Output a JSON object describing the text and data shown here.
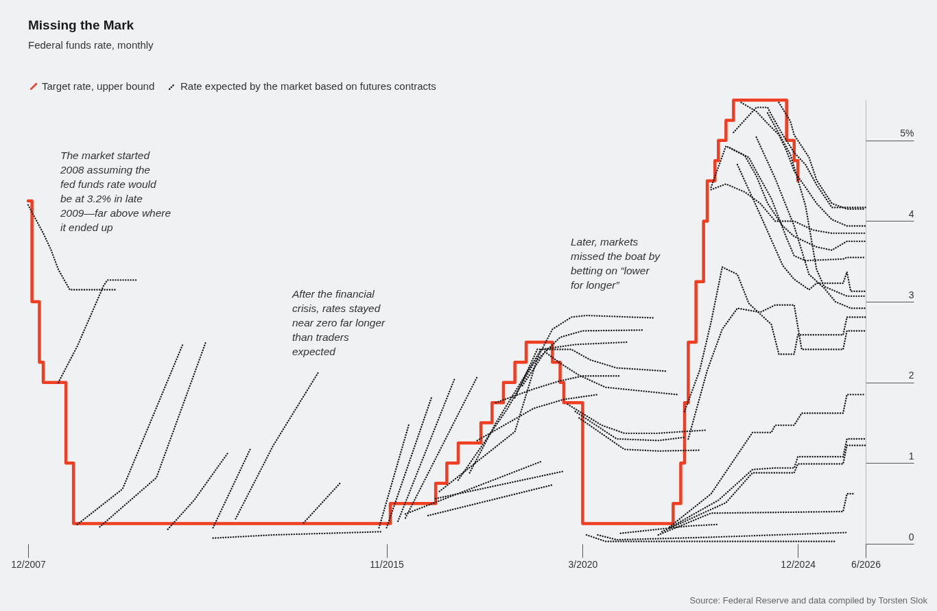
{
  "chart_data": {
    "type": "line",
    "title": "Missing the Mark",
    "subtitle": "Federal funds rate, monthly",
    "xlim": [
      "2007-12",
      "2026-06"
    ],
    "ylim": [
      0,
      5.5
    ],
    "xticks": [
      {
        "value": "2007-12",
        "label": "12/2007"
      },
      {
        "value": "2015-11",
        "label": "11/2015"
      },
      {
        "value": "2020-03",
        "label": "3/2020"
      },
      {
        "value": "2024-12",
        "label": "12/2024"
      },
      {
        "value": "2026-06",
        "label": "6/2026"
      }
    ],
    "yticks": [
      0,
      1,
      2,
      3,
      4,
      {
        "value": 5,
        "label": "5%"
      }
    ],
    "legend": "top left",
    "annotations": [
      "The market started 2008 assuming the fed funds rate would be at 3.2% in late 2009—far above where it ended up",
      "After the financial crisis, rates stayed near zero far longer than traders expected",
      "Later, markets missed the boat by betting on “lower for longer”",
      "Source: Federal Reserve and data compiled by Torsten Slok"
    ],
    "series": [
      {
        "name": "Target rate, upper bound",
        "type": "step",
        "line_style": "solid",
        "color": "#f03e22",
        "x": [
          "2007-12",
          "2008-01",
          "2008-03",
          "2008-04",
          "2008-10",
          "2008-12",
          "2015-12",
          "2016-12",
          "2017-03",
          "2017-06",
          "2017-12",
          "2018-03",
          "2018-06",
          "2018-09",
          "2018-12",
          "2019-07",
          "2019-09",
          "2019-10",
          "2020-03",
          "2022-03",
          "2022-05",
          "2022-06",
          "2022-07",
          "2022-09",
          "2022-11",
          "2022-12",
          "2023-02",
          "2023-03",
          "2023-05",
          "2023-07",
          "2024-09",
          "2024-11",
          "2024-12"
        ],
        "values": [
          4.25,
          3.0,
          2.25,
          2.0,
          1.0,
          0.25,
          0.5,
          0.75,
          1.0,
          1.25,
          1.5,
          1.75,
          2.0,
          2.25,
          2.5,
          2.25,
          2.0,
          1.75,
          0.25,
          0.5,
          1.0,
          1.75,
          2.5,
          3.25,
          4.0,
          4.5,
          4.75,
          5.0,
          5.25,
          5.5,
          5.0,
          4.75,
          4.5
        ]
      },
      {
        "name": "Rate expected by the market based on futures contracts",
        "line_style": "dotted",
        "color": "#1a1a1a",
        "x": [
          "2007-12",
          "2008-04",
          "2008-06",
          "2008-08",
          "2008-11",
          "2009-11"
        ],
        "values": [
          4.2,
          3.85,
          3.65,
          3.4,
          3.15,
          3.15
        ]
      },
      {
        "line_style": "dotted",
        "color": "#1a1a1a",
        "x": [
          "2008-08",
          "2009-01",
          "2009-08",
          "2009-09",
          "2010-05"
        ],
        "values": [
          2.0,
          2.45,
          3.2,
          3.27,
          3.27
        ]
      },
      {
        "line_style": "dotted",
        "color": "#1a1a1a",
        "x": [
          "2009-01",
          "2010-01",
          "2011-05"
        ],
        "values": [
          0.24,
          0.68,
          2.47
        ]
      },
      {
        "line_style": "dotted",
        "color": "#1a1a1a",
        "x": [
          "2009-07",
          "2010-10",
          "2011-11"
        ],
        "values": [
          0.21,
          0.82,
          2.49
        ]
      },
      {
        "line_style": "dotted",
        "color": "#1a1a1a",
        "x": [
          "2011-01",
          "2011-08",
          "2012-05"
        ],
        "values": [
          0.18,
          0.54,
          1.13
        ]
      },
      {
        "line_style": "dotted",
        "color": "#1a1a1a",
        "x": [
          "2012-01",
          "2012-11"
        ],
        "values": [
          0.2,
          1.19
        ]
      },
      {
        "line_style": "dotted",
        "color": "#1a1a1a",
        "x": [
          "2012-07",
          "2013-05",
          "2014-05"
        ],
        "values": [
          0.31,
          1.22,
          2.13
        ]
      },
      {
        "line_style": "dotted",
        "color": "#1a1a1a",
        "x": [
          "2014-01",
          "2014-11"
        ],
        "values": [
          0.26,
          0.77
        ]
      },
      {
        "line_style": "dotted",
        "color": "#1a1a1a",
        "x": [
          "2012-01",
          "2013-05",
          "2015-10"
        ],
        "values": [
          0.07,
          0.11,
          0.15
        ]
      },
      {
        "line_style": "dotted",
        "color": "#1a1a1a",
        "x": [
          "2015-09",
          "2016-05"
        ],
        "values": [
          0.2,
          1.49
        ]
      },
      {
        "line_style": "dotted",
        "color": "#1a1a1a",
        "x": [
          "2015-11",
          "2016-11"
        ],
        "values": [
          0.2,
          1.83
        ]
      },
      {
        "line_style": "dotted",
        "color": "#1a1a1a",
        "x": [
          "2016-02",
          "2017-05"
        ],
        "values": [
          0.28,
          2.04
        ]
      },
      {
        "line_style": "dotted",
        "color": "#1a1a1a",
        "x": [
          "2016-04",
          "2017-11"
        ],
        "values": [
          0.32,
          2.07
        ]
      },
      {
        "line_style": "dotted",
        "color": "#1a1a1a",
        "x": [
          "2016-04",
          "2019-04"
        ],
        "values": [
          0.37,
          1.02
        ]
      },
      {
        "line_style": "dotted",
        "color": "#1a1a1a",
        "x": [
          "2016-10",
          "2019-07"
        ],
        "values": [
          0.35,
          0.73
        ]
      },
      {
        "line_style": "dotted",
        "color": "#1a1a1a",
        "x": [
          "2016-12",
          "2019-10"
        ],
        "values": [
          0.56,
          0.9
        ]
      },
      {
        "line_style": "dotted",
        "color": "#1a1a1a",
        "x": [
          "2017-01",
          "2018-09",
          "2019-03",
          "2019-07",
          "2019-12",
          "2020-04",
          "2021-10"
        ],
        "values": [
          0.65,
          1.39,
          2.3,
          2.66,
          2.81,
          2.83,
          2.8
        ]
      },
      {
        "line_style": "dotted",
        "color": "#1a1a1a",
        "x": [
          "2017-06",
          "2018-07",
          "2019-02",
          "2019-09",
          "2020-03",
          "2021-07"
        ],
        "values": [
          0.79,
          1.67,
          2.24,
          2.56,
          2.64,
          2.65
        ]
      },
      {
        "line_style": "dotted",
        "color": "#1a1a1a",
        "x": [
          "2017-09",
          "2018-04",
          "2019-04",
          "2020-01",
          "2021-03"
        ],
        "values": [
          0.88,
          1.5,
          2.41,
          2.47,
          2.5
        ]
      },
      {
        "line_style": "dotted",
        "color": "#1a1a1a",
        "x": [
          "2018-09",
          "2019-03",
          "2019-12",
          "2020-05",
          "2020-12",
          "2022-01"
        ],
        "values": [
          1.81,
          2.41,
          2.41,
          2.28,
          2.18,
          2.14
        ]
      },
      {
        "line_style": "dotted",
        "color": "#1a1a1a",
        "x": [
          "2018-11",
          "2019-05",
          "2019-09",
          "2020-02",
          "2020-09",
          "2022-04"
        ],
        "values": [
          1.96,
          2.38,
          2.24,
          2.09,
          1.94,
          1.85
        ]
      },
      {
        "line_style": "dotted",
        "color": "#1a1a1a",
        "x": [
          "2018-04",
          "2019-02",
          "2019-09",
          "2020-03",
          "2021-01"
        ],
        "values": [
          1.75,
          1.92,
          2.02,
          2.08,
          2.08
        ]
      },
      {
        "line_style": "dotted",
        "color": "#1a1a1a",
        "x": [
          "2017-11",
          "2019-02",
          "2019-10",
          "2020-07"
        ],
        "values": [
          1.28,
          1.68,
          1.79,
          1.85
        ]
      },
      {
        "line_style": "dotted",
        "color": "#1a1a1a",
        "x": [
          "2019-11",
          "2020-08",
          "2021-02",
          "2021-11",
          "2022-12"
        ],
        "values": [
          1.73,
          1.47,
          1.37,
          1.37,
          1.41
        ]
      },
      {
        "line_style": "dotted",
        "color": "#1a1a1a",
        "x": [
          "2020-01",
          "2020-12",
          "2021-11",
          "2022-06"
        ],
        "values": [
          1.64,
          1.3,
          1.28,
          1.32
        ]
      },
      {
        "line_style": "dotted",
        "color": "#1a1a1a",
        "x": [
          "2020-02",
          "2021-02",
          "2021-11",
          "2022-10"
        ],
        "values": [
          1.56,
          1.17,
          1.15,
          1.16
        ]
      },
      {
        "line_style": "dotted",
        "color": "#1a1a1a",
        "x": [
          "2020-04",
          "2020-09",
          "2022-06",
          "2025-10"
        ],
        "values": [
          0.11,
          0.03,
          0.03,
          0.03
        ]
      },
      {
        "line_style": "dotted",
        "color": "#1a1a1a",
        "x": [
          "2020-07",
          "2020-12",
          "2022-12",
          "2026-01"
        ],
        "values": [
          0.11,
          0.05,
          0.08,
          0.14
        ]
      },
      {
        "line_style": "dotted",
        "color": "#1a1a1a",
        "x": [
          "2021-01",
          "2022-07",
          "2023-03"
        ],
        "values": [
          0.13,
          0.22,
          0.24
        ]
      },
      {
        "line_style": "dotted",
        "color": "#1a1a1a",
        "x": [
          "2021-11",
          "2023-01",
          "2025-12",
          "2026-01",
          "2026-03"
        ],
        "values": [
          0.11,
          0.38,
          0.4,
          0.62,
          0.62
        ]
      },
      {
        "line_style": "dotted",
        "color": "#1a1a1a",
        "x": [
          "2021-12",
          "2023-05",
          "2023-12",
          "2024-11",
          "2024-12",
          "2025-12",
          "2026-01",
          "2026-06"
        ],
        "values": [
          0.15,
          0.51,
          0.88,
          0.88,
          0.99,
          0.99,
          1.22,
          1.22
        ]
      },
      {
        "line_style": "dotted",
        "color": "#1a1a1a",
        "x": [
          "2022-02",
          "2023-03",
          "2023-12",
          "2024-06",
          "2024-11",
          "2024-12",
          "2025-12",
          "2026-01",
          "2026-06"
        ],
        "values": [
          0.2,
          0.54,
          0.92,
          0.94,
          0.94,
          1.08,
          1.08,
          1.3,
          1.3
        ]
      },
      {
        "line_style": "dotted",
        "color": "#1a1a1a",
        "x": [
          "2022-02",
          "2023-01",
          "2023-12",
          "2024-05",
          "2024-06",
          "2024-11",
          "2025-01",
          "2025-12",
          "2026-01",
          "2026-06"
        ],
        "values": [
          0.21,
          0.62,
          1.38,
          1.38,
          1.47,
          1.47,
          1.62,
          1.62,
          1.85,
          1.85
        ]
      },
      {
        "line_style": "dotted",
        "color": "#1a1a1a",
        "x": [
          "2022-06",
          "2022-10",
          "2023-01",
          "2023-04",
          "2023-08",
          "2023-11",
          "2024-05",
          "2024-07",
          "2024-11",
          "2024-12",
          "2025-12",
          "2026-01",
          "2026-06"
        ],
        "values": [
          1.64,
          2.15,
          2.75,
          3.43,
          3.34,
          2.98,
          2.72,
          2.35,
          2.35,
          2.59,
          2.59,
          2.81,
          2.81
        ]
      },
      {
        "line_style": "dotted",
        "color": "#1a1a1a",
        "x": [
          "2022-07",
          "2022-12",
          "2023-04",
          "2023-08",
          "2024-02",
          "2024-06",
          "2024-11",
          "2025-01",
          "2025-12",
          "2026-01",
          "2026-06"
        ],
        "values": [
          1.3,
          2.15,
          2.66,
          2.92,
          2.87,
          2.96,
          2.96,
          2.41,
          2.41,
          2.64,
          2.64
        ]
      },
      {
        "line_style": "dotted",
        "color": "#1a1a1a",
        "x": [
          "2023-07",
          "2024-01",
          "2024-04",
          "2024-05",
          "2024-08",
          "2024-11",
          "2025-02",
          "2025-05",
          "2025-09",
          "2026-06"
        ],
        "values": [
          5.1,
          5.41,
          5.41,
          5.32,
          5.07,
          4.85,
          4.7,
          4.45,
          4.17,
          4.17
        ]
      },
      {
        "line_style": "dotted",
        "color": "#1a1a1a",
        "x": [
          "2023-09",
          "2024-01",
          "2024-04",
          "2024-07",
          "2024-09",
          "2024-11",
          "2025-02",
          "2025-05",
          "2025-09",
          "2026-01",
          "2026-06"
        ],
        "values": [
          5.47,
          5.36,
          5.21,
          5.07,
          4.87,
          4.62,
          4.42,
          4.22,
          4.02,
          3.94,
          3.94
        ]
      },
      {
        "line_style": "dotted",
        "color": "#1a1a1a",
        "x": [
          "2024-07",
          "2024-10",
          "2024-11",
          "2025-03",
          "2025-05",
          "2025-09",
          "2026-01",
          "2026-06"
        ],
        "values": [
          5.47,
          5.24,
          5.07,
          4.79,
          4.51,
          4.22,
          4.15,
          4.15
        ]
      },
      {
        "line_style": "dotted",
        "color": "#1a1a1a",
        "x": [
          "2023-01",
          "2023-05",
          "2023-10",
          "2024-01",
          "2024-04",
          "2024-08",
          "2024-11",
          "2025-05",
          "2025-09",
          "2026-01",
          "2026-06"
        ],
        "values": [
          4.42,
          4.93,
          4.81,
          4.56,
          4.22,
          3.94,
          3.81,
          3.68,
          3.64,
          3.75,
          3.75
        ]
      },
      {
        "line_style": "dotted",
        "color": "#1a1a1a",
        "x": [
          "2023-06",
          "2023-11",
          "2024-02",
          "2024-05",
          "2024-09",
          "2024-11",
          "2025-02",
          "2025-12",
          "2026-01",
          "2026-06"
        ],
        "values": [
          4.91,
          4.79,
          4.53,
          4.28,
          3.79,
          3.57,
          3.51,
          3.53,
          3.55,
          3.55
        ]
      },
      {
        "line_style": "dotted",
        "color": "#1a1a1a",
        "x": [
          "2023-01",
          "2023-05",
          "2023-10",
          "2024-02",
          "2024-06",
          "2024-11",
          "2025-04",
          "2025-09",
          "2026-06"
        ],
        "values": [
          4.39,
          4.46,
          4.36,
          4.22,
          4.0,
          4.0,
          3.89,
          3.85,
          3.85
        ]
      },
      {
        "line_style": "dotted",
        "color": "#1a1a1a",
        "x": [
          "2024-04",
          "2024-10",
          "2025-02",
          "2025-05",
          "2025-07",
          "2026-01",
          "2026-06"
        ],
        "values": [
          5.34,
          4.83,
          4.19,
          3.4,
          3.19,
          3.07,
          3.07
        ]
      },
      {
        "line_style": "dotted",
        "color": "#1a1a1a",
        "x": [
          "2024-01",
          "2024-06",
          "2024-11",
          "2025-03",
          "2025-07",
          "2025-10",
          "2026-02",
          "2026-06"
        ],
        "values": [
          5.04,
          4.53,
          3.94,
          3.34,
          3.17,
          3.0,
          2.92,
          2.92
        ]
      },
      {
        "line_style": "dotted",
        "color": "#1a1a1a",
        "x": [
          "2023-08",
          "2024-02",
          "2024-08",
          "2024-11",
          "2025-03",
          "2025-05",
          "2025-12",
          "2026-01",
          "2026-02",
          "2026-06"
        ],
        "values": [
          4.7,
          4.08,
          3.45,
          3.28,
          3.15,
          3.23,
          3.23,
          3.37,
          3.13,
          3.13
        ]
      }
    ]
  }
}
